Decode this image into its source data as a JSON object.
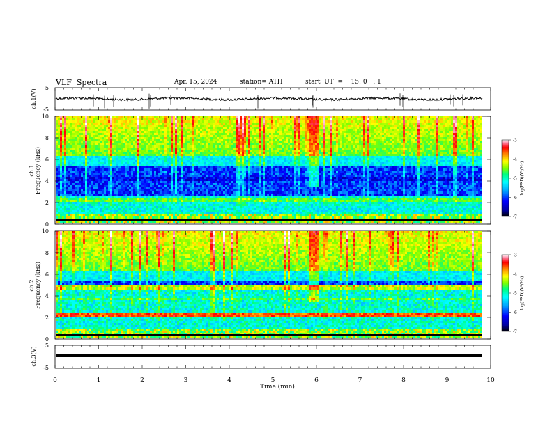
{
  "header": {
    "title": "VLF  Spectra",
    "date": "Apr. 15, 2024",
    "station": "station= ATH",
    "start_ut": "start  UT  =    15: 0   : 1"
  },
  "chart_data": [
    {
      "type": "line",
      "name": "ch1-waveform",
      "ylabel": "ch.1(V)",
      "ylim": [
        -5,
        5
      ],
      "yticks": [
        "5",
        "-5"
      ],
      "xlim": [
        0,
        10
      ],
      "trace_color": "#000000"
    },
    {
      "type": "heatmap",
      "name": "ch1-spectrogram",
      "ylabel": "ch.1\nFrequency (kHz)",
      "ylim": [
        0,
        10
      ],
      "yticks": [
        "0",
        "2",
        "4",
        "6",
        "8",
        "10"
      ],
      "xlim": [
        0,
        9.8
      ],
      "colorbar": {
        "label": "log(PSD)(V²/Hz)",
        "range": [
          -7,
          -3
        ],
        "ticks": [
          "-3",
          "-4",
          "-5",
          "-6",
          "-7"
        ]
      },
      "bands_khz": [
        [
          0.3,
          0.7,
          "strong"
        ],
        [
          2.0,
          2.3,
          "moderate"
        ],
        [
          4.0,
          4.4,
          "weak"
        ]
      ],
      "event_minute": 5.9
    },
    {
      "type": "heatmap",
      "name": "ch2-spectrogram",
      "ylabel": "ch.2\nFrequency (kHz)",
      "ylim": [
        0,
        10
      ],
      "yticks": [
        "0",
        "2",
        "4",
        "6",
        "8",
        "10"
      ],
      "xlim": [
        0,
        9.8
      ],
      "colorbar": {
        "label": "log(PSD)(V²/Hz)",
        "range": [
          -7,
          -3
        ],
        "ticks": [
          "-3",
          "-4",
          "-5",
          "-6",
          "-7"
        ]
      },
      "bands_khz": [
        [
          2.0,
          2.2,
          "strong"
        ],
        [
          4.6,
          4.9,
          "moderate"
        ],
        [
          3.5,
          3.8,
          "moderate"
        ]
      ],
      "event_minute": 5.9
    },
    {
      "type": "line",
      "name": "ch3-waveform",
      "ylabel": "ch.3(V)",
      "ylim": [
        -5,
        5
      ],
      "yticks": [
        "5",
        "-5"
      ],
      "xlim": [
        0,
        10
      ],
      "trace_color": "#000000"
    }
  ],
  "x_axis": {
    "label": "Time  (min)",
    "ticks": [
      "0",
      "1",
      "2",
      "3",
      "4",
      "5",
      "6",
      "7",
      "8",
      "9",
      "10"
    ]
  },
  "colors": {
    "colormap": [
      "#000000",
      "#0000a0",
      "#0000ff",
      "#00a0ff",
      "#00ffff",
      "#00ff80",
      "#80ff00",
      "#ffff00",
      "#ff8000",
      "#ff0000",
      "#ff80a0",
      "#ffffff"
    ]
  }
}
